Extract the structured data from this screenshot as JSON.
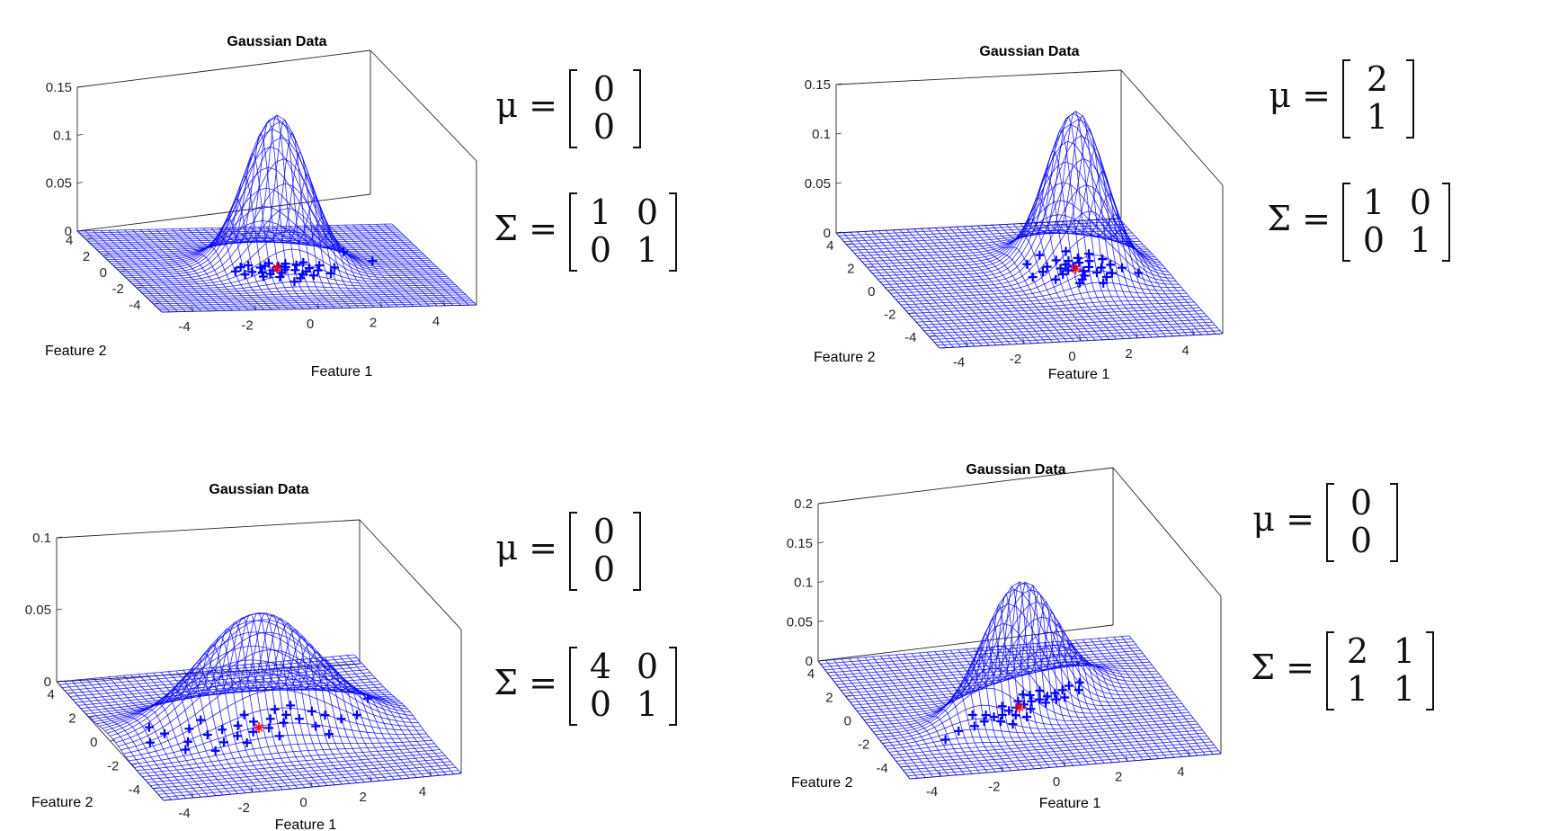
{
  "chart_data": [
    {
      "type": "surface",
      "title": "Gaussian Data",
      "xlabel": "Feature 1",
      "ylabel": "Feature 2",
      "xticks": [
        "-4",
        "-2",
        "0",
        "2",
        "4"
      ],
      "yticks": [
        "-4",
        "-2",
        "0",
        "2",
        "4"
      ],
      "zticks": [
        "0",
        "0.05",
        "0.1",
        "0.15"
      ],
      "xlim": [
        -5,
        5
      ],
      "ylim": [
        -5,
        5
      ],
      "zlim": [
        0,
        0.15
      ],
      "mu": [
        0,
        0
      ],
      "sigma": [
        [
          1,
          0
        ],
        [
          0,
          1
        ]
      ],
      "mesh_color": "#0000ff",
      "sample_color": "#0000ff",
      "mean_marker_color": "#ff0000",
      "samples": [
        [
          -1.4,
          -0.3
        ],
        [
          -0.9,
          -0.4
        ],
        [
          -0.6,
          -0.5
        ],
        [
          -0.4,
          -0.7
        ],
        [
          -0.2,
          -0.3
        ],
        [
          0.0,
          -0.6
        ],
        [
          0.2,
          -0.2
        ],
        [
          0.3,
          0.1
        ],
        [
          0.5,
          -0.3
        ],
        [
          0.6,
          -0.8
        ],
        [
          0.8,
          -0.5
        ],
        [
          1.0,
          -0.1
        ],
        [
          1.2,
          -0.4
        ],
        [
          -1.1,
          0.2
        ],
        [
          -0.8,
          0.4
        ],
        [
          -0.5,
          0.1
        ],
        [
          -0.3,
          0.3
        ],
        [
          0.1,
          0.2
        ],
        [
          0.4,
          0.5
        ],
        [
          0.7,
          0.3
        ],
        [
          1.0,
          0.6
        ],
        [
          1.4,
          0.2
        ],
        [
          -0.2,
          -1.1
        ],
        [
          0.4,
          -1.3
        ],
        [
          0.9,
          -1.0
        ],
        [
          1.5,
          -0.8
        ],
        [
          -0.7,
          -1.0
        ],
        [
          -1.2,
          -0.7
        ],
        [
          2.6,
          1.8
        ],
        [
          3.2,
          0.6
        ],
        [
          0.1,
          -1.7
        ],
        [
          1.8,
          -0.1
        ],
        [
          -0.1,
          0.6
        ]
      ],
      "formula": {
        "mu_label": "μ =",
        "mu": [
          "0",
          "0"
        ],
        "sigma_label": "Σ =",
        "sigma": [
          [
            "1",
            "0"
          ],
          [
            "0",
            "1"
          ]
        ]
      }
    },
    {
      "type": "surface",
      "title": "Gaussian Data",
      "xlabel": "Feature 1",
      "ylabel": "Feature 2",
      "xticks": [
        "-4",
        "-2",
        "0",
        "2",
        "4"
      ],
      "yticks": [
        "-4",
        "-2",
        "0",
        "2",
        "4"
      ],
      "zticks": [
        "0",
        "0.05",
        "0.1",
        "0.15"
      ],
      "xlim": [
        -5,
        5
      ],
      "ylim": [
        -5,
        5
      ],
      "zlim": [
        0,
        0.15
      ],
      "mu": [
        2,
        1
      ],
      "sigma": [
        [
          1,
          0
        ],
        [
          0,
          1
        ]
      ],
      "mesh_color": "#0000ff",
      "sample_color": "#0000ff",
      "mean_marker_color": "#ff0000",
      "samples": [
        [
          1.4,
          0.6
        ],
        [
          1.7,
          0.9
        ],
        [
          2.0,
          1.2
        ],
        [
          2.2,
          0.8
        ],
        [
          2.5,
          1.1
        ],
        [
          1.8,
          1.4
        ],
        [
          2.3,
          1.5
        ],
        [
          2.6,
          0.6
        ],
        [
          2.9,
          1.0
        ],
        [
          1.5,
          1.1
        ],
        [
          2.1,
          0.4
        ],
        [
          2.7,
          1.6
        ],
        [
          3.1,
          0.5
        ],
        [
          1.1,
          1.3
        ],
        [
          1.9,
          0.1
        ],
        [
          2.4,
          1.9
        ],
        [
          3.3,
          1.2
        ],
        [
          0.8,
          0.9
        ],
        [
          2.8,
          0.2
        ],
        [
          1.6,
          1.8
        ],
        [
          2.0,
          1.7
        ],
        [
          3.6,
          0.9
        ],
        [
          1.2,
          2.3
        ],
        [
          2.2,
          2.5
        ],
        [
          0.5,
          1.6
        ],
        [
          2.5,
          -0.3
        ],
        [
          4.0,
          0.4
        ],
        [
          1.0,
          0.2
        ],
        [
          2.9,
          2.2
        ],
        [
          0.3,
          0.5
        ],
        [
          1.7,
          -0.2
        ],
        [
          3.2,
          1.7
        ]
      ],
      "formula": {
        "mu_label": "μ =",
        "mu": [
          "2",
          "1"
        ],
        "sigma_label": "Σ =",
        "sigma": [
          [
            "1",
            "0"
          ],
          [
            "0",
            "1"
          ]
        ]
      }
    },
    {
      "type": "surface",
      "title": "Gaussian Data",
      "xlabel": "Feature 1",
      "ylabel": "Feature 2",
      "xticks": [
        "-4",
        "-2",
        "0",
        "2",
        "4"
      ],
      "yticks": [
        "-4",
        "-2",
        "0",
        "2",
        "4"
      ],
      "zticks": [
        "0",
        "0.05",
        "0.1"
      ],
      "xlim": [
        -5,
        5
      ],
      "ylim": [
        -5,
        5
      ],
      "zlim": [
        0,
        0.1
      ],
      "mu": [
        0,
        0
      ],
      "sigma": [
        [
          4,
          0
        ],
        [
          0,
          1
        ]
      ],
      "mesh_color": "#0000ff",
      "sample_color": "#0000ff",
      "mean_marker_color": "#ff0000",
      "samples": [
        [
          -3.8,
          -0.4
        ],
        [
          -3.1,
          0.2
        ],
        [
          -2.6,
          -0.6
        ],
        [
          -2.2,
          0.4
        ],
        [
          -1.8,
          -0.2
        ],
        [
          -1.5,
          -0.9
        ],
        [
          -1.2,
          0.1
        ],
        [
          -0.9,
          -0.5
        ],
        [
          -0.6,
          0.3
        ],
        [
          -0.3,
          -0.3
        ],
        [
          0.0,
          0.5
        ],
        [
          0.3,
          -0.1
        ],
        [
          0.6,
          0.6
        ],
        [
          0.9,
          0.2
        ],
        [
          1.2,
          0.8
        ],
        [
          1.5,
          0.4
        ],
        [
          1.8,
          -0.3
        ],
        [
          2.1,
          0.9
        ],
        [
          2.4,
          0.5
        ],
        [
          2.8,
          0.1
        ],
        [
          -2.9,
          -1.2
        ],
        [
          -1.6,
          1.0
        ],
        [
          -0.8,
          -1.1
        ],
        [
          0.4,
          -0.8
        ],
        [
          1.0,
          1.3
        ],
        [
          3.4,
          0.3
        ],
        [
          -3.4,
          0.8
        ],
        [
          2.0,
          -1.0
        ],
        [
          4.2,
          1.5
        ],
        [
          -0.1,
          1.1
        ],
        [
          1.6,
          1.5
        ],
        [
          -2.0,
          -1.5
        ]
      ],
      "formula": {
        "mu_label": "μ =",
        "mu": [
          "0",
          "0"
        ],
        "sigma_label": "Σ =",
        "sigma": [
          [
            "4",
            "0"
          ],
          [
            "0",
            "1"
          ]
        ]
      }
    },
    {
      "type": "surface",
      "title": "Gaussian Data",
      "xlabel": "Feature 1",
      "ylabel": "Feature 2",
      "xticks": [
        "-4",
        "-2",
        "0",
        "2",
        "4"
      ],
      "yticks": [
        "-4",
        "-2",
        "0",
        "2",
        "4"
      ],
      "zticks": [
        "0",
        "0.05",
        "0.1",
        "0.15",
        "0.2"
      ],
      "xlim": [
        -5,
        5
      ],
      "ylim": [
        -5,
        5
      ],
      "zlim": [
        0,
        0.2
      ],
      "mu": [
        0,
        0
      ],
      "sigma": [
        [
          2,
          1
        ],
        [
          1,
          1
        ]
      ],
      "mesh_color": "#0000ff",
      "sample_color": "#0000ff",
      "mean_marker_color": "#ff0000",
      "samples": [
        [
          -1.8,
          -1.2
        ],
        [
          -1.4,
          -0.9
        ],
        [
          -1.0,
          -0.6
        ],
        [
          -0.7,
          -0.5
        ],
        [
          -0.4,
          -0.2
        ],
        [
          -0.1,
          0.0
        ],
        [
          0.2,
          0.2
        ],
        [
          0.5,
          0.4
        ],
        [
          0.8,
          0.5
        ],
        [
          1.1,
          0.7
        ],
        [
          1.4,
          0.9
        ],
        [
          1.7,
          1.1
        ],
        [
          -0.9,
          -1.0
        ],
        [
          -0.3,
          -0.6
        ],
        [
          0.3,
          -0.2
        ],
        [
          0.9,
          0.2
        ],
        [
          1.3,
          0.4
        ],
        [
          -1.2,
          -0.4
        ],
        [
          -0.5,
          0.2
        ],
        [
          0.1,
          0.5
        ],
        [
          0.6,
          0.9
        ],
        [
          1.0,
          1.2
        ],
        [
          2.0,
          1.4
        ],
        [
          -2.4,
          -1.5
        ],
        [
          2.4,
          1.6
        ],
        [
          -3.0,
          -2.1
        ],
        [
          0.0,
          -0.8
        ],
        [
          1.6,
          0.5
        ],
        [
          -0.6,
          -1.3
        ],
        [
          0.4,
          1.0
        ],
        [
          2.2,
          1.0
        ],
        [
          -1.6,
          -0.3
        ]
      ],
      "formula": {
        "mu_label": "μ =",
        "mu": [
          "0",
          "0"
        ],
        "sigma_label": "Σ =",
        "sigma": [
          [
            "2",
            "1"
          ],
          [
            "1",
            "1"
          ]
        ]
      }
    }
  ]
}
